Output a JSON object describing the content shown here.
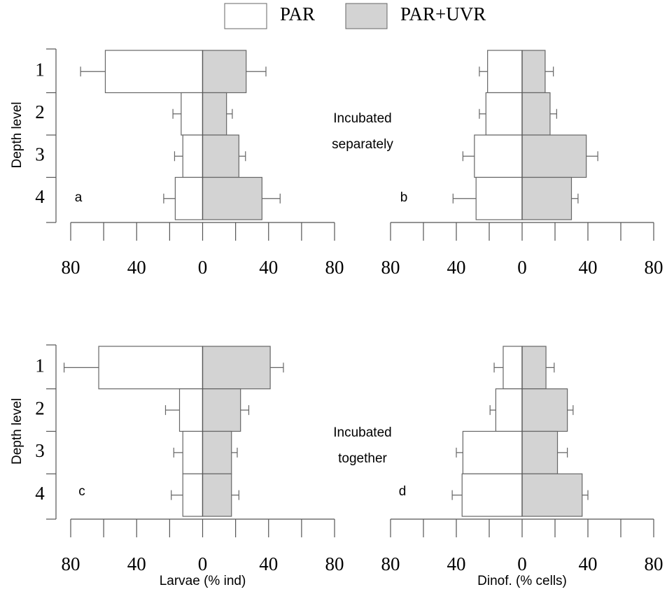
{
  "legend": [
    {
      "name": "PAR",
      "color": "#ffffff"
    },
    {
      "name": "PAR+UVR",
      "color": "#d3d3d3"
    }
  ],
  "chart_data": [
    {
      "type": "bar",
      "orientation": "back-to-back",
      "panel_label": "a",
      "ylabel": "Depth level",
      "categories": [
        "1",
        "2",
        "3",
        "4"
      ],
      "xlim": [
        -80,
        80
      ],
      "xticks": [
        {
          "value": -80,
          "label": "80"
        },
        {
          "value": -40,
          "label": "40"
        },
        0,
        40,
        80
      ],
      "xminorticks": [
        -60,
        -20,
        20,
        60
      ],
      "series": [
        {
          "color": "#ffffff",
          "values": [
            -59,
            -13,
            -12,
            -16.6
          ],
          "errors": [
            15,
            5,
            5,
            7
          ]
        },
        {
          "color": "#d3d3d3",
          "values": [
            26.4,
            14.5,
            22,
            36
          ],
          "errors": [
            12,
            3.5,
            4,
            11
          ]
        }
      ]
    },
    {
      "type": "bar",
      "orientation": "back-to-back",
      "panel_label": "b",
      "annotation": [
        "Incubated",
        "separately"
      ],
      "categories": [
        "1",
        "2",
        "3",
        "4"
      ],
      "xlim": [
        -80,
        80
      ],
      "xticks": [
        {
          "value": -80,
          "label": "80"
        },
        {
          "value": -40,
          "label": "40"
        },
        0,
        40,
        80
      ],
      "xminorticks": [
        -60,
        -20,
        20,
        60
      ],
      "series": [
        {
          "color": "#ffffff",
          "values": [
            -21,
            -22,
            -29,
            -28
          ],
          "errors": [
            5,
            4,
            7,
            14
          ]
        },
        {
          "color": "#d3d3d3",
          "values": [
            14,
            17,
            39,
            30
          ],
          "errors": [
            5,
            4,
            7,
            4
          ]
        }
      ]
    },
    {
      "type": "bar",
      "orientation": "back-to-back",
      "panel_label": "c",
      "ylabel": "Depth level",
      "xlabel": "Larvae (% ind)",
      "categories": [
        "1",
        "2",
        "3",
        "4"
      ],
      "xlim": [
        -80,
        80
      ],
      "xticks": [
        {
          "value": -80,
          "label": "80"
        },
        {
          "value": -40,
          "label": "40"
        },
        0,
        40,
        80
      ],
      "xminorticks": [
        -60,
        -20,
        20,
        60
      ],
      "series": [
        {
          "color": "#ffffff",
          "values": [
            -63,
            -14,
            -12,
            -12
          ],
          "errors": [
            21,
            8.5,
            5.5,
            7
          ]
        },
        {
          "color": "#d3d3d3",
          "values": [
            41,
            23,
            17.5,
            17.5
          ],
          "errors": [
            8,
            5,
            3.5,
            4.5
          ]
        }
      ]
    },
    {
      "type": "bar",
      "orientation": "back-to-back",
      "panel_label": "d",
      "annotation": [
        "Incubated",
        "together"
      ],
      "xlabel": "Dinof. (% cells)",
      "categories": [
        "1",
        "2",
        "3",
        "4"
      ],
      "xlim": [
        -80,
        80
      ],
      "xticks": [
        {
          "value": -80,
          "label": "80"
        },
        {
          "value": -40,
          "label": "40"
        },
        0,
        40,
        80
      ],
      "xminorticks": [
        -60,
        -20,
        20,
        60
      ],
      "series": [
        {
          "color": "#ffffff",
          "values": [
            -11.5,
            -16,
            -36,
            -36.5
          ],
          "errors": [
            5.5,
            3.5,
            4,
            6
          ]
        },
        {
          "color": "#d3d3d3",
          "values": [
            14.5,
            27.5,
            21.5,
            36.5
          ],
          "errors": [
            5,
            3.5,
            6,
            3.5
          ]
        }
      ]
    }
  ]
}
